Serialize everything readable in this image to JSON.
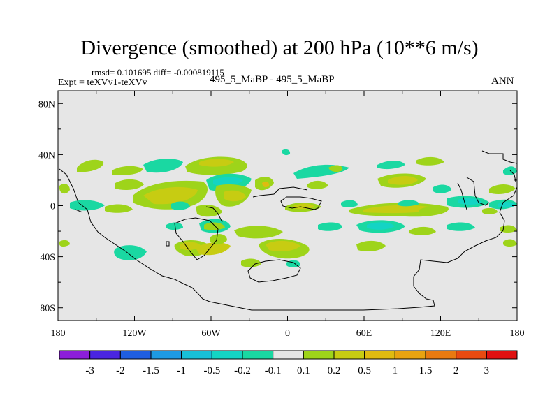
{
  "header": {
    "title": "Divergence (smoothed) at 200 hPa (10**6 m/s)",
    "stats": "rmsd= 0.101695 diff= -0.000819115",
    "expt": "Expt = teXVv1-teXVv",
    "cases": "495_5_MaBP - 495_5_MaBP",
    "season": "ANN"
  },
  "colors": {
    "background": "#e6e6e6",
    "palette": [
      "#8c1ed9",
      "#4a25e0",
      "#1f5ee0",
      "#1e9ae3",
      "#17c0d8",
      "#14d4c4",
      "#1ad8a2",
      "#e6e6e6",
      "#9ed41a",
      "#c7cc12",
      "#dfbb10",
      "#e8a310",
      "#e87a10",
      "#e84a10",
      "#e01010"
    ]
  },
  "chart_data": {
    "type": "heatmap",
    "title": "Divergence (smoothed) at 200 hPa (10**6 m/s)",
    "x_ticks": [
      "180",
      "120W",
      "60W",
      "0",
      "60E",
      "120E",
      "180"
    ],
    "y_ticks": [
      "80N",
      "40N",
      "0",
      "40S",
      "80S"
    ],
    "xlim": [
      -180,
      180
    ],
    "ylim": [
      -90,
      90
    ],
    "levels": [
      "-3",
      "-2",
      "-1.5",
      "-1",
      "-0.5",
      "-0.2",
      "-0.1",
      "0.1",
      "0.2",
      "0.5",
      "1",
      "1.5",
      "2",
      "3"
    ],
    "values": [
      {
        "lon": -160,
        "lat": 30,
        "level": "0.1 to 0.2"
      },
      {
        "lon": -105,
        "lat": 10,
        "level": "0.2 to 0.5"
      },
      {
        "lon": -60,
        "lat": 10,
        "level": "0.2 to 0.5"
      },
      {
        "lon": -40,
        "lat": 28,
        "level": "0.1 to 0.2"
      },
      {
        "lon": -60,
        "lat": -25,
        "level": "0.2 to 0.5"
      },
      {
        "lon": -20,
        "lat": -30,
        "level": "0.1 to 0.2"
      },
      {
        "lon": -50,
        "lat": 15,
        "level": "-0.2 to -0.1"
      },
      {
        "lon": 15,
        "lat": -3,
        "level": "0.2 to 0.5"
      },
      {
        "lon": 85,
        "lat": -3,
        "level": "0.1 to 0.2"
      },
      {
        "lon": 95,
        "lat": 20,
        "level": "0.2 to 0.5"
      },
      {
        "lon": 105,
        "lat": -15,
        "level": "-0.2 to -0.1"
      },
      {
        "lon": 170,
        "lat": 5,
        "level": "-0.2 to -0.1"
      }
    ]
  }
}
